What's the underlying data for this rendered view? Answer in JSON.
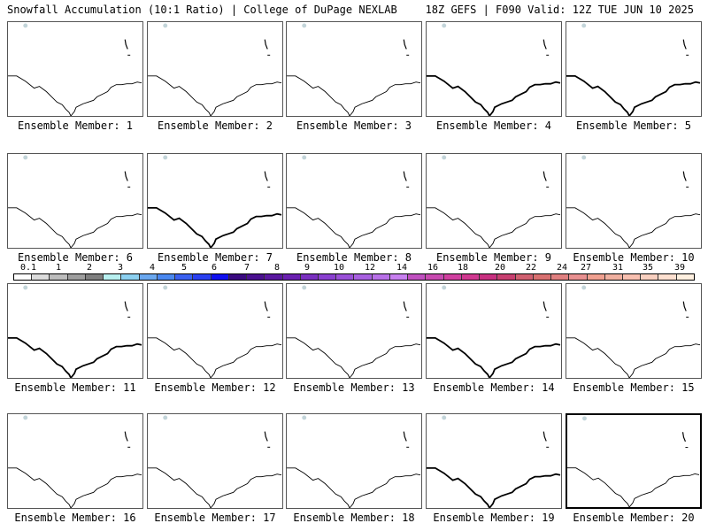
{
  "header": {
    "left": "Snowfall Accumulation (10:1 Ratio) | College of DuPage NEXLAB",
    "right": "18Z GEFS | F090 Valid: 12Z TUE JUN 10 2025"
  },
  "panels": [
    {
      "label": "Ensemble Member: 1",
      "coast": "thin"
    },
    {
      "label": "Ensemble Member: 2",
      "coast": "thin"
    },
    {
      "label": "Ensemble Member: 3",
      "coast": "thin"
    },
    {
      "label": "Ensemble Member: 4",
      "coast": "bold"
    },
    {
      "label": "Ensemble Member: 5",
      "coast": "bold"
    },
    {
      "label": "Ensemble Member: 6",
      "coast": "thin"
    },
    {
      "label": "Ensemble Member: 7",
      "coast": "bold"
    },
    {
      "label": "Ensemble Member: 8",
      "coast": "thin"
    },
    {
      "label": "Ensemble Member: 9",
      "coast": "thin"
    },
    {
      "label": "Ensemble Member: 10",
      "coast": "thin"
    },
    {
      "label": "Ensemble Member: 11",
      "coast": "bold"
    },
    {
      "label": "Ensemble Member: 12",
      "coast": "thin"
    },
    {
      "label": "Ensemble Member: 13",
      "coast": "thin"
    },
    {
      "label": "Ensemble Member: 14",
      "coast": "bold"
    },
    {
      "label": "Ensemble Member: 15",
      "coast": "thin"
    },
    {
      "label": "Ensemble Member: 16",
      "coast": "thin"
    },
    {
      "label": "Ensemble Member: 17",
      "coast": "thin"
    },
    {
      "label": "Ensemble Member: 18",
      "coast": "thin"
    },
    {
      "label": "Ensemble Member: 19",
      "coast": "bold"
    },
    {
      "label": "Ensemble Member: 20",
      "coast": "thin",
      "selected": true
    }
  ],
  "colorbar": {
    "labels": [
      "0.1",
      "1",
      "2",
      "3",
      "4",
      "5",
      "6",
      "7",
      "8",
      "9",
      "10",
      "12",
      "14",
      "16",
      "18",
      "20",
      "22",
      "24",
      "27",
      "31",
      "35",
      "39"
    ],
    "colors": [
      "#ffffff",
      "#dcdcdc",
      "#bdbdbd",
      "#9e9e9e",
      "#7f7f7f",
      "#b8f0f0",
      "#8cd0f0",
      "#6aa8f0",
      "#4a88f0",
      "#3a60f0",
      "#2a40f0",
      "#1010f0",
      "#3a0a80",
      "#4a1090",
      "#5a18a0",
      "#6a20b0",
      "#7a30c0",
      "#8a40d0",
      "#9a50d8",
      "#a860e0",
      "#b870e8",
      "#c880f0",
      "#c050c0",
      "#c84ab0",
      "#d040a0",
      "#d03890",
      "#c83080",
      "#c84070",
      "#d06070",
      "#d87070",
      "#e08080",
      "#e89090",
      "#f0a090",
      "#f0b0a0",
      "#f8c0b0",
      "#f8d0c0",
      "#fde0d0",
      "#fff0e0"
    ]
  }
}
